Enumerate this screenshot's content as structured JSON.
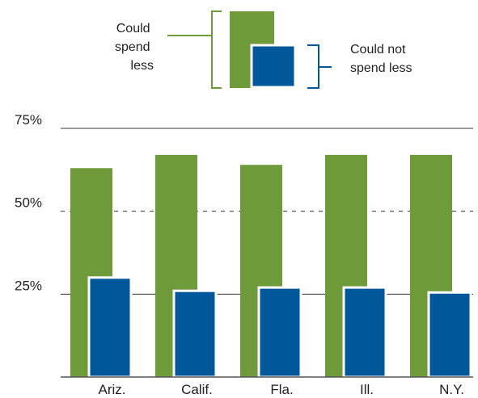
{
  "legend": {
    "could_spend_less": [
      "Could",
      "spend",
      "less"
    ],
    "could_not_spend_less": [
      "Could not",
      "spend less"
    ]
  },
  "colors": {
    "could_spend_less": "#6E9A3A",
    "could_not_spend_less": "#00579A",
    "axis": "#555555",
    "text": "#222222"
  },
  "chart_data": {
    "type": "bar",
    "categories": [
      "Ariz.",
      "Calif.",
      "Fla.",
      "Ill.",
      "N.Y."
    ],
    "series": [
      {
        "values": [
          63,
          67,
          64,
          67,
          67
        ]
      },
      {
        "values": [
          30,
          26,
          27,
          27,
          25.5
        ]
      }
    ],
    "ylim": [
      0,
      75
    ],
    "yticks": [
      {
        "value": 75,
        "label": "75%",
        "style": "solid"
      },
      {
        "value": 50,
        "label": "50%",
        "style": "dashed"
      },
      {
        "value": 25,
        "label": "25%",
        "style": "solid"
      }
    ],
    "legend_position": "top-center",
    "title": "",
    "xlabel": "",
    "ylabel": ""
  }
}
